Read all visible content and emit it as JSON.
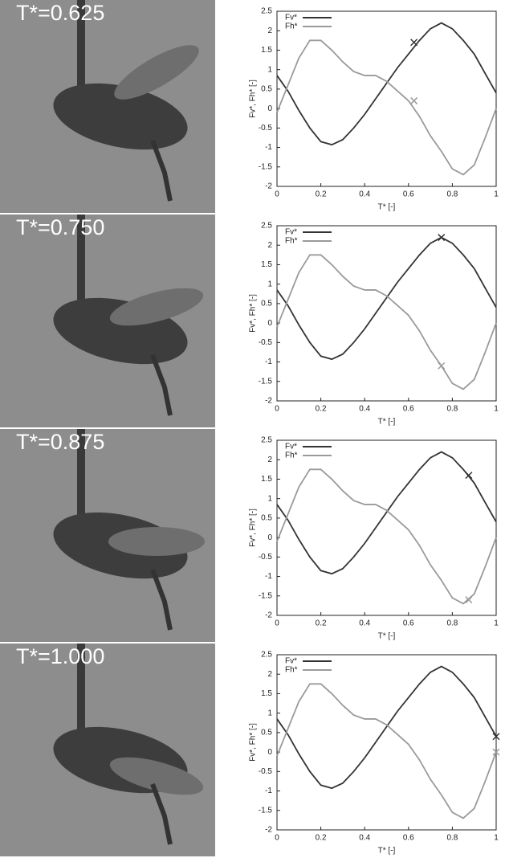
{
  "chart_data": [
    {
      "type": "line",
      "photo_label": "T*=0.625",
      "xlabel": "T* [-]",
      "ylabel": "Fv*, Fh* [-]",
      "xlim": [
        0,
        1
      ],
      "ylim": [
        -2,
        2.5
      ],
      "xticks": [
        0,
        0.2,
        0.4,
        0.6,
        0.8,
        1
      ],
      "yticks": [
        -2,
        -1.5,
        -1,
        -0.5,
        0,
        0.5,
        1,
        1.5,
        2,
        2.5
      ],
      "x": [
        0,
        0.05,
        0.1,
        0.15,
        0.2,
        0.25,
        0.3,
        0.35,
        0.4,
        0.45,
        0.5,
        0.55,
        0.6,
        0.65,
        0.7,
        0.75,
        0.8,
        0.85,
        0.9,
        0.95,
        1
      ],
      "series": [
        {
          "name": "Fv*",
          "color": "#333333",
          "values": [
            0.85,
            0.45,
            -0.05,
            -0.5,
            -0.85,
            -0.93,
            -0.8,
            -0.5,
            -0.15,
            0.25,
            0.65,
            1.05,
            1.4,
            1.75,
            2.05,
            2.2,
            2.05,
            1.75,
            1.4,
            0.9,
            0.4
          ]
        },
        {
          "name": "Fh*",
          "color": "#9a9a9a",
          "values": [
            -0.1,
            0.6,
            1.3,
            1.75,
            1.75,
            1.5,
            1.2,
            0.95,
            0.85,
            0.85,
            0.7,
            0.45,
            0.2,
            -0.2,
            -0.7,
            -1.1,
            -1.55,
            -1.7,
            -1.45,
            -0.75,
            0.0
          ]
        }
      ],
      "marker_x": 0.625,
      "marker_values": [
        1.7,
        0.2
      ]
    },
    {
      "type": "line",
      "photo_label": "T*=0.750",
      "xlabel": "T* [-]",
      "ylabel": "Fv*, Fh* [-]",
      "xlim": [
        0,
        1
      ],
      "ylim": [
        -2,
        2.5
      ],
      "xticks": [
        0,
        0.2,
        0.4,
        0.6,
        0.8,
        1
      ],
      "yticks": [
        -2,
        -1.5,
        -1,
        -0.5,
        0,
        0.5,
        1,
        1.5,
        2,
        2.5
      ],
      "x": [
        0,
        0.05,
        0.1,
        0.15,
        0.2,
        0.25,
        0.3,
        0.35,
        0.4,
        0.45,
        0.5,
        0.55,
        0.6,
        0.65,
        0.7,
        0.75,
        0.8,
        0.85,
        0.9,
        0.95,
        1
      ],
      "series": [
        {
          "name": "Fv*",
          "color": "#333333",
          "values": [
            0.85,
            0.45,
            -0.05,
            -0.5,
            -0.85,
            -0.93,
            -0.8,
            -0.5,
            -0.15,
            0.25,
            0.65,
            1.05,
            1.4,
            1.75,
            2.05,
            2.2,
            2.05,
            1.75,
            1.4,
            0.9,
            0.4
          ]
        },
        {
          "name": "Fh*",
          "color": "#9a9a9a",
          "values": [
            -0.1,
            0.6,
            1.3,
            1.75,
            1.75,
            1.5,
            1.2,
            0.95,
            0.85,
            0.85,
            0.7,
            0.45,
            0.2,
            -0.2,
            -0.7,
            -1.1,
            -1.55,
            -1.7,
            -1.45,
            -0.75,
            0.0
          ]
        }
      ],
      "marker_x": 0.75,
      "marker_values": [
        2.2,
        -1.1
      ]
    },
    {
      "type": "line",
      "photo_label": "T*=0.875",
      "xlabel": "T* [-]",
      "ylabel": "Fv*, Fh* [-]",
      "xlim": [
        0,
        1
      ],
      "ylim": [
        -2,
        2.5
      ],
      "xticks": [
        0,
        0.2,
        0.4,
        0.6,
        0.8,
        1
      ],
      "yticks": [
        -2,
        -1.5,
        -1,
        -0.5,
        0,
        0.5,
        1,
        1.5,
        2,
        2.5
      ],
      "x": [
        0,
        0.05,
        0.1,
        0.15,
        0.2,
        0.25,
        0.3,
        0.35,
        0.4,
        0.45,
        0.5,
        0.55,
        0.6,
        0.65,
        0.7,
        0.75,
        0.8,
        0.85,
        0.9,
        0.95,
        1
      ],
      "series": [
        {
          "name": "Fv*",
          "color": "#333333",
          "values": [
            0.85,
            0.45,
            -0.05,
            -0.5,
            -0.85,
            -0.93,
            -0.8,
            -0.5,
            -0.15,
            0.25,
            0.65,
            1.05,
            1.4,
            1.75,
            2.05,
            2.2,
            2.05,
            1.75,
            1.4,
            0.9,
            0.4
          ]
        },
        {
          "name": "Fh*",
          "color": "#9a9a9a",
          "values": [
            -0.1,
            0.6,
            1.3,
            1.75,
            1.75,
            1.5,
            1.2,
            0.95,
            0.85,
            0.85,
            0.7,
            0.45,
            0.2,
            -0.2,
            -0.7,
            -1.1,
            -1.55,
            -1.7,
            -1.45,
            -0.75,
            0.0
          ]
        }
      ],
      "marker_x": 0.875,
      "marker_values": [
        1.6,
        -1.6
      ]
    },
    {
      "type": "line",
      "photo_label": "T*=1.000",
      "xlabel": "T* [-]",
      "ylabel": "Fv*, Fh* [-]",
      "xlim": [
        0,
        1
      ],
      "ylim": [
        -2,
        2.5
      ],
      "xticks": [
        0,
        0.2,
        0.4,
        0.6,
        0.8,
        1
      ],
      "yticks": [
        -2,
        -1.5,
        -1,
        -0.5,
        0,
        0.5,
        1,
        1.5,
        2,
        2.5
      ],
      "x": [
        0,
        0.05,
        0.1,
        0.15,
        0.2,
        0.25,
        0.3,
        0.35,
        0.4,
        0.45,
        0.5,
        0.55,
        0.6,
        0.65,
        0.7,
        0.75,
        0.8,
        0.85,
        0.9,
        0.95,
        1
      ],
      "series": [
        {
          "name": "Fv*",
          "color": "#333333",
          "values": [
            0.85,
            0.45,
            -0.05,
            -0.5,
            -0.85,
            -0.93,
            -0.8,
            -0.5,
            -0.15,
            0.25,
            0.65,
            1.05,
            1.4,
            1.75,
            2.05,
            2.2,
            2.05,
            1.75,
            1.4,
            0.9,
            0.4
          ]
        },
        {
          "name": "Fh*",
          "color": "#9a9a9a",
          "values": [
            -0.1,
            0.6,
            1.3,
            1.75,
            1.75,
            1.5,
            1.2,
            0.95,
            0.85,
            0.85,
            0.7,
            0.45,
            0.2,
            -0.2,
            -0.7,
            -1.1,
            -1.55,
            -1.7,
            -1.45,
            -0.75,
            0.0
          ]
        }
      ],
      "marker_x": 1,
      "marker_values": [
        0.4,
        0.0
      ]
    }
  ]
}
